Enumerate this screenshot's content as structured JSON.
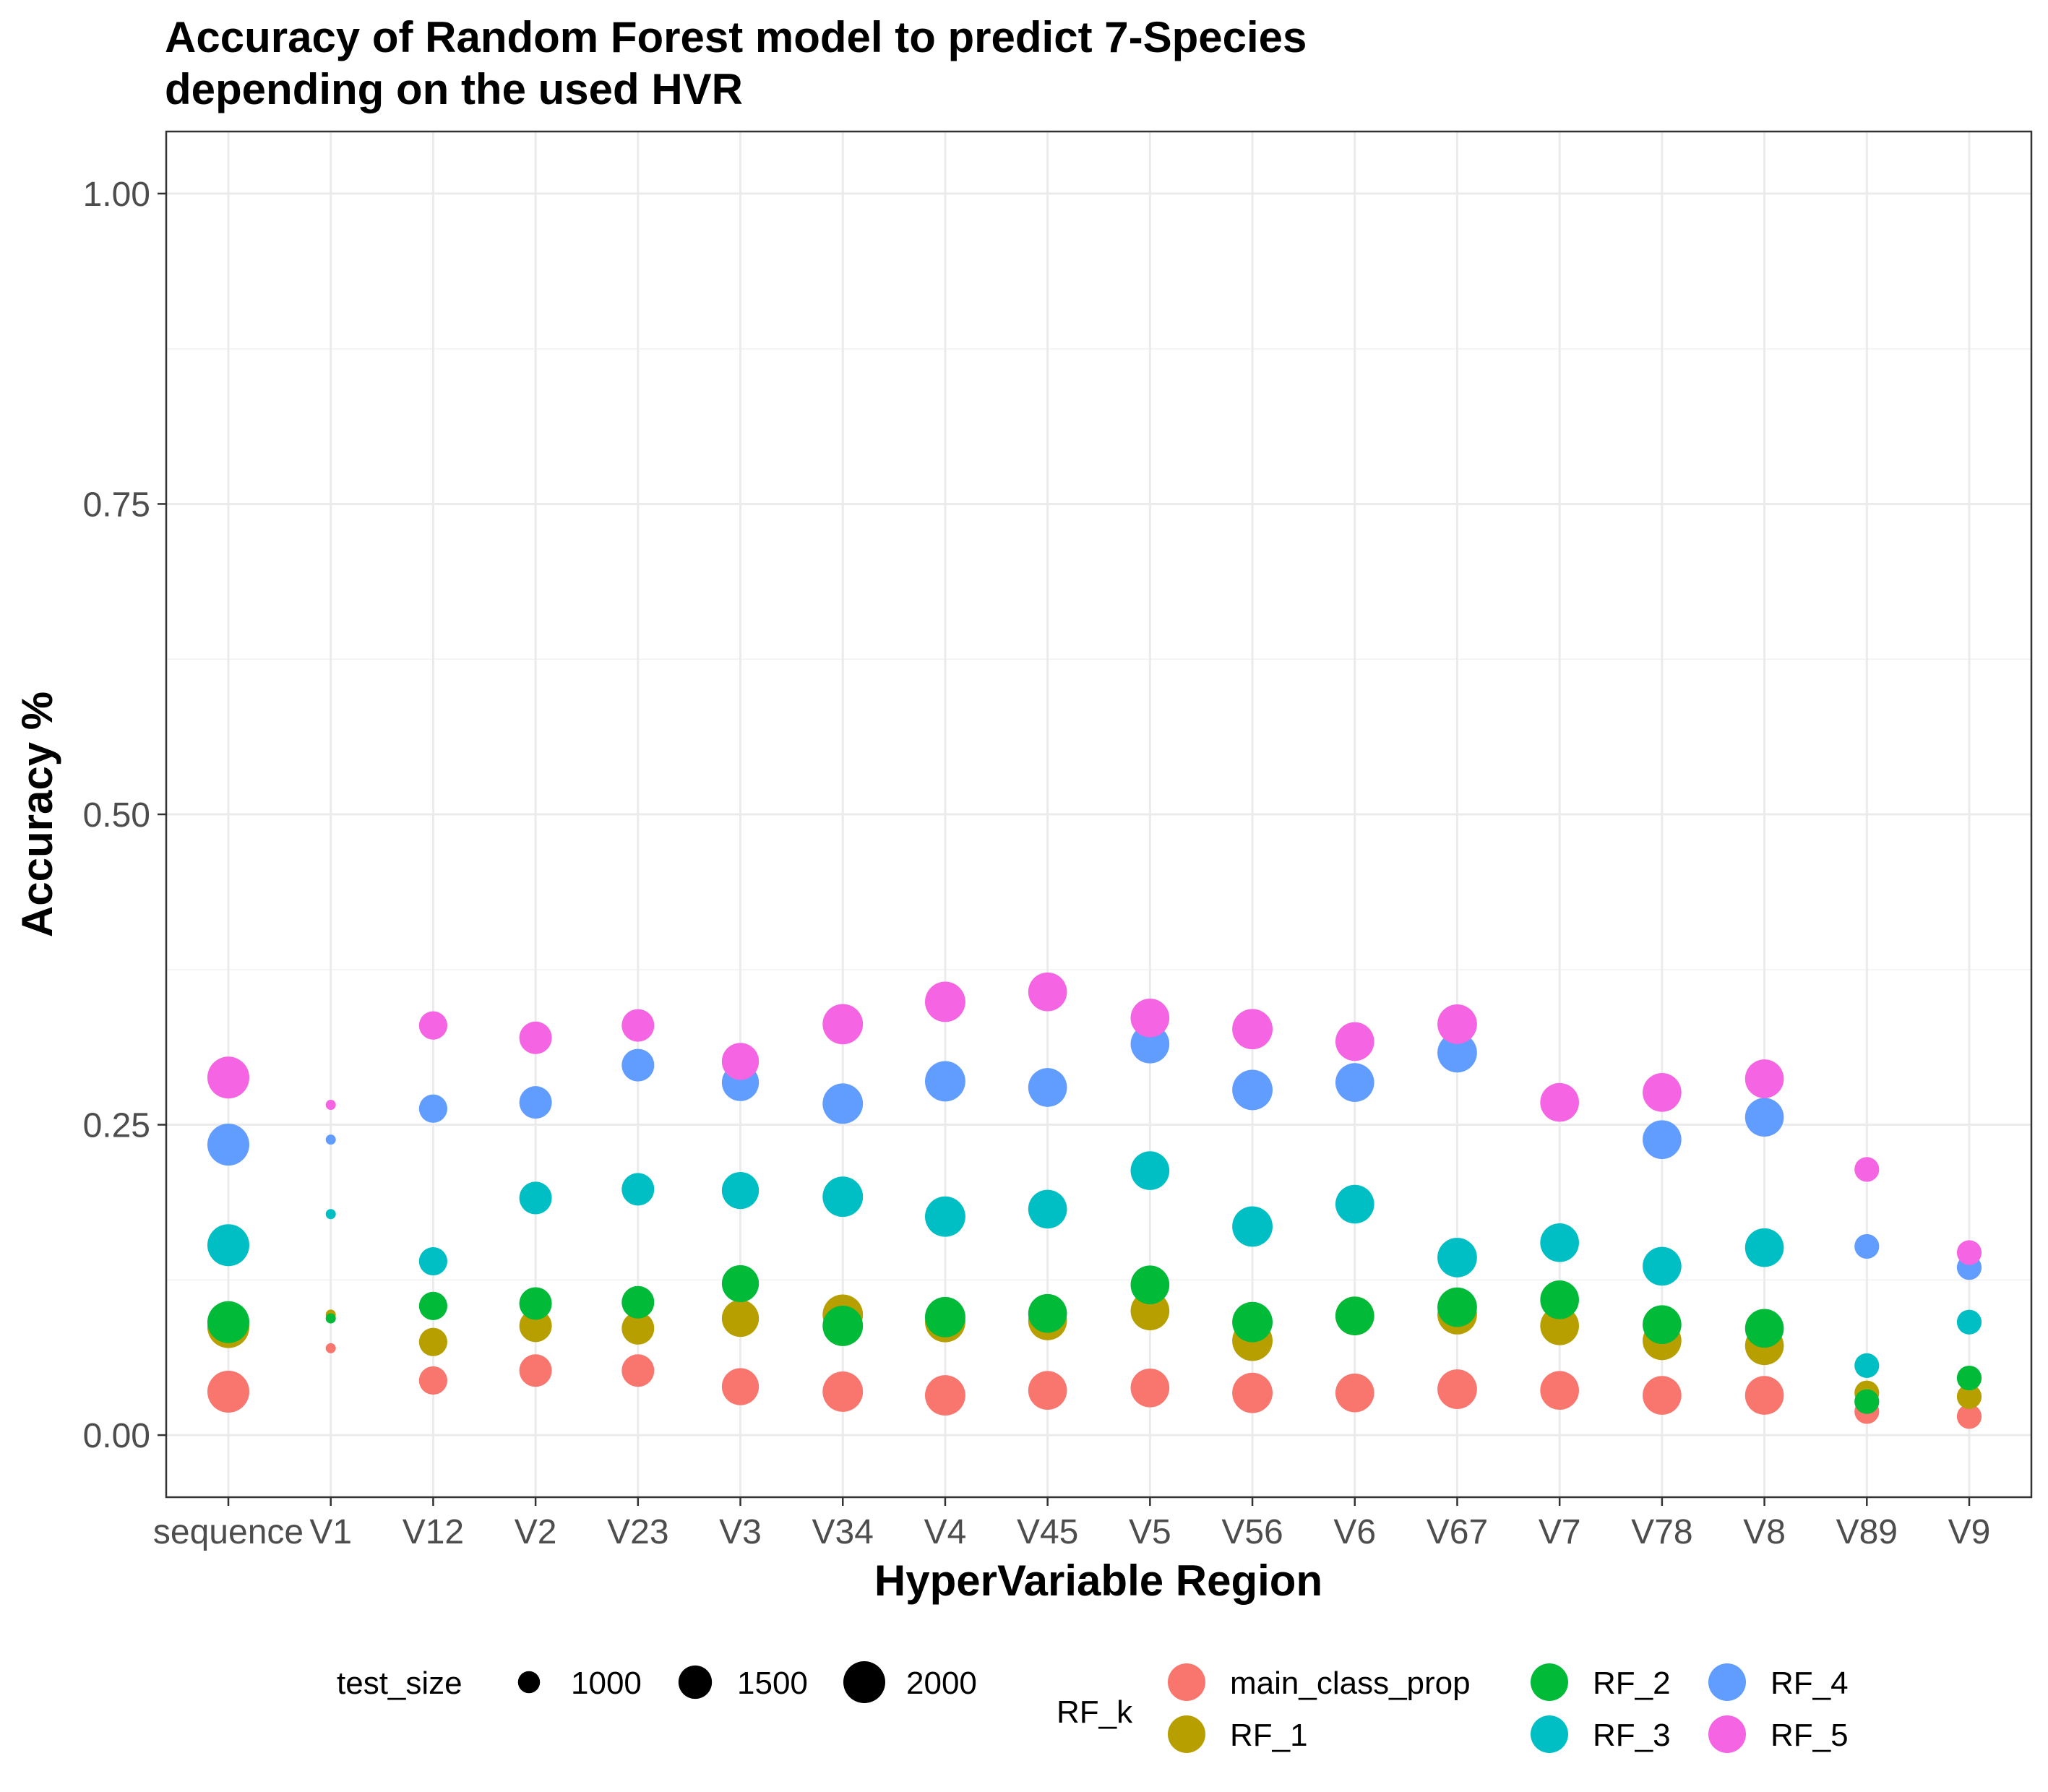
{
  "chart_data": {
    "type": "scatter",
    "title": "Accuracy of Random Forest model to predict 7-Species\ndepending on the used HVR",
    "xlabel": "HyperVariable Region",
    "ylabel": "Accuracy %",
    "ylim": [
      -0.05,
      1.05
    ],
    "y_ticks": [
      0.0,
      0.25,
      0.5,
      0.75,
      1.0
    ],
    "y_tick_labels": [
      "0.00",
      "0.25",
      "0.50",
      "0.75",
      "1.00"
    ],
    "grid": true,
    "categories": [
      "sequence",
      "V1",
      "V12",
      "V2",
      "V23",
      "V3",
      "V34",
      "V4",
      "V45",
      "V5",
      "V56",
      "V6",
      "V67",
      "V7",
      "V78",
      "V8",
      "V89",
      "V9"
    ],
    "test_size": [
      2000,
      700,
      1250,
      1450,
      1450,
      1700,
      1900,
      1900,
      1800,
      1800,
      1900,
      1800,
      1850,
      1800,
      1800,
      1800,
      1100,
      1100
    ],
    "series": [
      {
        "name": "main_class_prop",
        "color": "#F8766D",
        "values": [
          0.035,
          0.07,
          0.044,
          0.052,
          0.052,
          0.039,
          0.035,
          0.032,
          0.036,
          0.038,
          0.034,
          0.034,
          0.037,
          0.036,
          0.032,
          0.032,
          0.019,
          0.015
        ]
      },
      {
        "name": "RF_1",
        "color": "#B79F00",
        "values": [
          0.087,
          0.097,
          0.075,
          0.088,
          0.086,
          0.094,
          0.097,
          0.091,
          0.092,
          0.1,
          0.076,
          0.096,
          0.097,
          0.088,
          0.076,
          0.072,
          0.034,
          0.031
        ]
      },
      {
        "name": "RF_2",
        "color": "#00BA38",
        "values": [
          0.091,
          0.094,
          0.104,
          0.106,
          0.107,
          0.122,
          0.088,
          0.095,
          0.098,
          0.121,
          0.091,
          0.096,
          0.103,
          0.109,
          0.089,
          0.086,
          0.027,
          0.046
        ]
      },
      {
        "name": "RF_3",
        "color": "#00BFC4",
        "values": [
          0.153,
          0.178,
          0.14,
          0.191,
          0.198,
          0.197,
          0.192,
          0.176,
          0.182,
          0.213,
          0.168,
          0.186,
          0.143,
          0.155,
          0.136,
          0.151,
          0.056,
          0.091
        ]
      },
      {
        "name": "RF_4",
        "color": "#619CFF",
        "values": [
          0.234,
          0.238,
          0.263,
          0.268,
          0.298,
          0.284,
          0.267,
          0.285,
          0.28,
          0.315,
          0.278,
          0.284,
          0.308,
          null,
          0.238,
          0.256,
          0.152,
          0.135
        ]
      },
      {
        "name": "RF_5",
        "color": "#F564E3",
        "values": [
          0.288,
          0.266,
          0.33,
          0.32,
          0.33,
          0.301,
          0.331,
          0.349,
          0.357,
          0.336,
          0.327,
          0.317,
          0.331,
          0.268,
          0.276,
          0.287,
          0.214,
          0.147
        ]
      }
    ],
    "legend": {
      "placement": "bottom",
      "size_title": "test_size",
      "size_breaks": [
        1000,
        1500,
        2000
      ],
      "size_labels": [
        "1000",
        "1500",
        "2000"
      ],
      "color_title": "RF_k"
    }
  }
}
